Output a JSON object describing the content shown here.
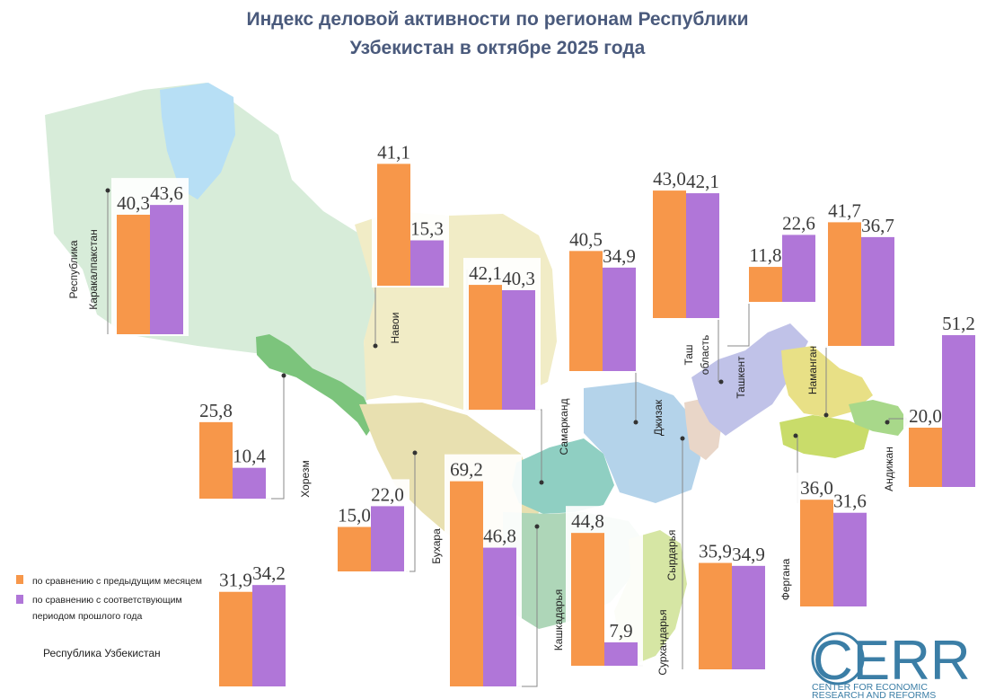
{
  "title_lines": [
    "Индекс деловой активности по регионам Республики",
    "Узбекистан в октябре 2025 года"
  ],
  "colors": {
    "prev_month": "#f7974a",
    "prev_year": "#b076d8",
    "title": "#4a5a7c",
    "logo": "#3b7ea6"
  },
  "legend": [
    {
      "label": "по сравнению с предыдущим месяцем",
      "color": "#f7974a"
    },
    {
      "label": "по сравнению с соответствующим",
      "color": "#b076d8"
    },
    {
      "label": "периодом прошлого года",
      "color": ""
    }
  ],
  "logo": {
    "name": "CERR",
    "sub1": "CENTER FOR ECONOMIC",
    "sub2": "RESEARCH AND REFORMS"
  },
  "chart_data": {
    "type": "bar",
    "title": "Индекс деловой активности по регионам Республики Узбекистан в октябре 2025 года",
    "series_names": [
      "по сравнению с предыдущим месяцем",
      "по сравнению с соответствующим периодом прошлого года"
    ],
    "regions": [
      {
        "label": "Республика Каракалпакстан",
        "prev_month": 40.3,
        "prev_year": 43.6,
        "prev_month_label": "40,3",
        "prev_year_label": "43,6"
      },
      {
        "label": "Навои",
        "prev_month": 41.1,
        "prev_year": 15.3,
        "prev_month_label": "41,1",
        "prev_year_label": "15,3"
      },
      {
        "label": "Самарканд",
        "prev_month": 42.1,
        "prev_year": 40.3,
        "prev_month_label": "42,1",
        "prev_year_label": "40,3"
      },
      {
        "label": "Джизак",
        "prev_month": 40.5,
        "prev_year": 34.9,
        "prev_month_label": "40,5",
        "prev_year_label": "34,9"
      },
      {
        "label": "Таш область",
        "prev_month": 43.0,
        "prev_year": 42.1,
        "prev_month_label": "43,0",
        "prev_year_label": "42,1"
      },
      {
        "label": "Ташкент",
        "prev_month": 11.8,
        "prev_year": 22.6,
        "prev_month_label": "11,8",
        "prev_year_label": "22,6"
      },
      {
        "label": "Наманган",
        "prev_month": 41.7,
        "prev_year": 36.7,
        "prev_month_label": "41,7",
        "prev_year_label": "36,7"
      },
      {
        "label": "Андижан",
        "prev_month": 20.0,
        "prev_year": 51.2,
        "prev_month_label": "20,0",
        "prev_year_label": "51,2"
      },
      {
        "label": "Хорезм",
        "prev_month": 25.8,
        "prev_year": 10.4,
        "prev_month_label": "25,8",
        "prev_year_label": "10,4"
      },
      {
        "label": "Бухара",
        "prev_month": 15.0,
        "prev_year": 22.0,
        "prev_month_label": "15,0",
        "prev_year_label": "22,0"
      },
      {
        "label": "Кашкадарья",
        "prev_month": 69.2,
        "prev_year": 46.8,
        "prev_month_label": "69,2",
        "prev_year_label": "46,8"
      },
      {
        "label": "Сурхандарья",
        "prev_month": 44.8,
        "prev_year": 7.9,
        "prev_month_label": "44,8",
        "prev_year_label": "7,9"
      },
      {
        "label": "Сырдарья",
        "prev_month": 35.9,
        "prev_year": 34.9,
        "prev_month_label": "35,9",
        "prev_year_label": "34,9"
      },
      {
        "label": "Фергана",
        "prev_month": 36.0,
        "prev_year": 31.6,
        "prev_month_label": "36,0",
        "prev_year_label": "31,6"
      },
      {
        "label": "Республика Узбекистан",
        "prev_month": 31.9,
        "prev_year": 34.2,
        "prev_month_label": "31,9",
        "prev_year_label": "34,2"
      }
    ]
  }
}
